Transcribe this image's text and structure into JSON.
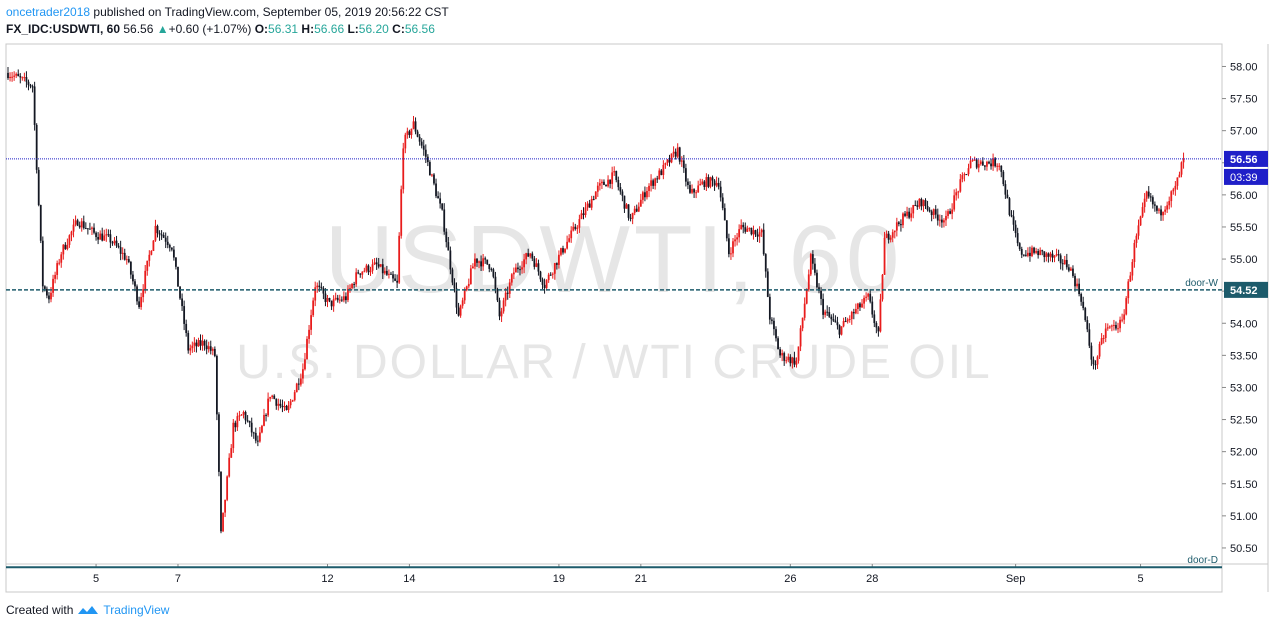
{
  "header": {
    "username": "oncetrader2018",
    "published_text": " published on TradingView.com, September 05, 2019 20:56:22 CST",
    "symbol": "FX_IDC:USDWTI, 60",
    "last": "56.56",
    "change_arrow": "▲",
    "change": "+0.60 (+1.07%)",
    "o_label": "O:",
    "o_value": "56.31",
    "h_label": "H:",
    "h_value": "56.66",
    "l_label": "L:",
    "l_value": "56.20",
    "c_label": "C:",
    "c_value": "56.56"
  },
  "watermark": {
    "line1": "USDWTI, 60",
    "line2": "U.S. DOLLAR / WTI CRUDE OIL"
  },
  "footer": {
    "created_with": "Created with",
    "brand": "TradingView"
  },
  "colors": {
    "up_candle": "#e81c1c",
    "down_candle": "#131722",
    "last_price_line": "#1f1fc8",
    "last_price_bg": "#1f1fc8",
    "door_line": "#1d5b6b",
    "door_bg": "#1d5b6b",
    "grid_border": "#c8c8c8",
    "watermark": "#e5e5e5"
  },
  "chart_data": {
    "type": "candlestick",
    "title": "USDWTI, 60",
    "ylim": [
      50.25,
      58.35
    ],
    "y_ticks": [
      58.0,
      57.5,
      57.0,
      56.5,
      56.0,
      55.5,
      55.0,
      54.5,
      54.0,
      53.5,
      53.0,
      52.5,
      52.0,
      51.5,
      51.0,
      50.5
    ],
    "x_tick_labels": [
      "5",
      "7",
      "12",
      "14",
      "19",
      "21",
      "26",
      "28",
      "Sep",
      "5"
    ],
    "x_tick_index": [
      43,
      83,
      156,
      196,
      269,
      309,
      382,
      422,
      492,
      553
    ],
    "price_path": [
      [
        0,
        57.9
      ],
      [
        12,
        57.7
      ],
      [
        17,
        54.6
      ],
      [
        20,
        54.4
      ],
      [
        26,
        55.1
      ],
      [
        34,
        55.6
      ],
      [
        42,
        55.4
      ],
      [
        50,
        55.3
      ],
      [
        58,
        55.0
      ],
      [
        64,
        54.3
      ],
      [
        72,
        55.5
      ],
      [
        80,
        55.2
      ],
      [
        88,
        53.6
      ],
      [
        96,
        53.7
      ],
      [
        101,
        53.5
      ],
      [
        104,
        50.7
      ],
      [
        110,
        52.4
      ],
      [
        115,
        52.6
      ],
      [
        122,
        52.1
      ],
      [
        128,
        52.9
      ],
      [
        136,
        52.6
      ],
      [
        144,
        53.3
      ],
      [
        150,
        54.6
      ],
      [
        157,
        54.3
      ],
      [
        165,
        54.4
      ],
      [
        171,
        54.8
      ],
      [
        180,
        54.9
      ],
      [
        190,
        54.6
      ],
      [
        193,
        56.8
      ],
      [
        198,
        57.1
      ],
      [
        204,
        56.6
      ],
      [
        212,
        55.7
      ],
      [
        220,
        54.1
      ],
      [
        228,
        55.0
      ],
      [
        236,
        54.9
      ],
      [
        240,
        54.1
      ],
      [
        247,
        54.8
      ],
      [
        255,
        55.1
      ],
      [
        262,
        54.6
      ],
      [
        270,
        55.1
      ],
      [
        279,
        55.6
      ],
      [
        288,
        56.1
      ],
      [
        296,
        56.3
      ],
      [
        304,
        55.6
      ],
      [
        312,
        56.1
      ],
      [
        320,
        56.4
      ],
      [
        327,
        56.7
      ],
      [
        333,
        56.0
      ],
      [
        340,
        56.2
      ],
      [
        347,
        56.2
      ],
      [
        352,
        55.1
      ],
      [
        358,
        55.5
      ],
      [
        368,
        55.4
      ],
      [
        372,
        54.1
      ],
      [
        377,
        53.5
      ],
      [
        385,
        53.4
      ],
      [
        392,
        55.0
      ],
      [
        398,
        54.2
      ],
      [
        406,
        53.9
      ],
      [
        414,
        54.2
      ],
      [
        420,
        54.4
      ],
      [
        425,
        53.8
      ],
      [
        428,
        55.3
      ],
      [
        436,
        55.6
      ],
      [
        446,
        55.9
      ],
      [
        452,
        55.7
      ],
      [
        458,
        55.6
      ],
      [
        464,
        56.1
      ],
      [
        470,
        56.5
      ],
      [
        478,
        56.5
      ],
      [
        484,
        56.5
      ],
      [
        490,
        55.6
      ],
      [
        494,
        55.1
      ],
      [
        503,
        55.1
      ],
      [
        512,
        55.0
      ],
      [
        518,
        54.9
      ],
      [
        524,
        54.4
      ],
      [
        530,
        53.3
      ],
      [
        536,
        53.9
      ],
      [
        544,
        54.0
      ],
      [
        550,
        55.2
      ],
      [
        556,
        56.0
      ],
      [
        562,
        55.7
      ],
      [
        570,
        56.1
      ],
      [
        574,
        56.56
      ]
    ],
    "lines": [
      {
        "name": "",
        "value": 56.56,
        "style": "dotted",
        "label": "56.56",
        "sub_label": "03:39"
      },
      {
        "name": "door-W",
        "value": 54.52,
        "style": "dashed",
        "label": "54.52"
      },
      {
        "name": "door-D",
        "value": 50.2,
        "style": "solid",
        "label": ""
      }
    ]
  }
}
